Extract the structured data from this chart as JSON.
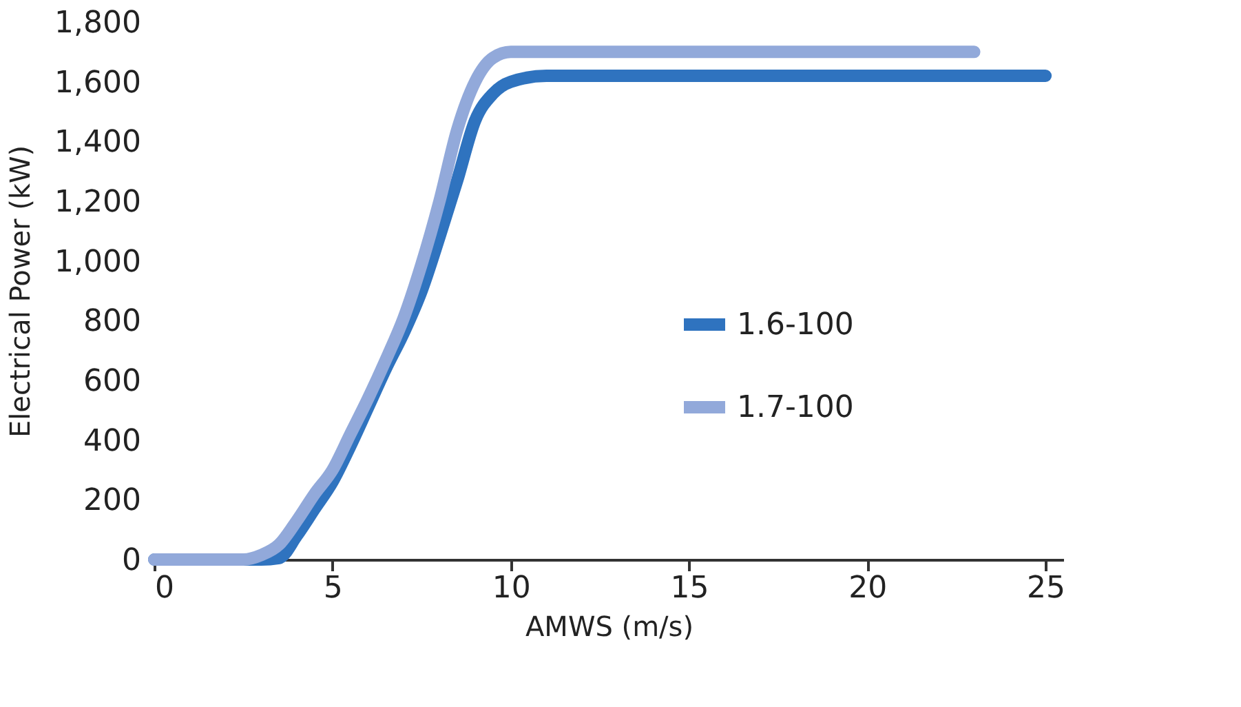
{
  "chart_data": {
    "type": "line",
    "xlabel": "AMWS (m/s)",
    "ylabel": "Electrical Power (kW)",
    "xlim": [
      0,
      25.5
    ],
    "xticks": [
      0,
      5,
      10,
      15,
      20,
      25
    ],
    "ylim": [
      0,
      1800
    ],
    "yticks": [
      0,
      200,
      400,
      600,
      800,
      {
        "value": 1000,
        "label": "1,000"
      },
      {
        "value": 1200,
        "label": "1,200"
      },
      {
        "value": 1400,
        "label": "1,400"
      },
      {
        "value": 1600,
        "label": "1,600"
      },
      {
        "value": 1800,
        "label": "1,800"
      }
    ],
    "grid": false,
    "legend": "right",
    "marker": "none",
    "line_style": "solid",
    "series": [
      {
        "name": "1.6-100",
        "color": "#2f73bf",
        "x": [
          0,
          3,
          3.5,
          4,
          4.5,
          5,
          5.5,
          6,
          6.5,
          7,
          7.5,
          8,
          8.5,
          9,
          9.5,
          10,
          11,
          12,
          25
        ],
        "values": [
          0,
          0,
          5,
          80,
          170,
          260,
          380,
          510,
          640,
          760,
          900,
          1080,
          1270,
          1470,
          1560,
          1600,
          1620,
          1620,
          1620
        ]
      },
      {
        "name": "1.7-100",
        "color": "#92a9da",
        "x": [
          0,
          2.5,
          3,
          3.5,
          4,
          4.5,
          5,
          5.5,
          6,
          6.5,
          7,
          7.5,
          8,
          8.5,
          9,
          9.5,
          10,
          11,
          23
        ],
        "values": [
          0,
          0,
          15,
          50,
          130,
          220,
          300,
          420,
          540,
          670,
          810,
          990,
          1200,
          1440,
          1600,
          1680,
          1700,
          1700,
          1700
        ]
      }
    ]
  }
}
